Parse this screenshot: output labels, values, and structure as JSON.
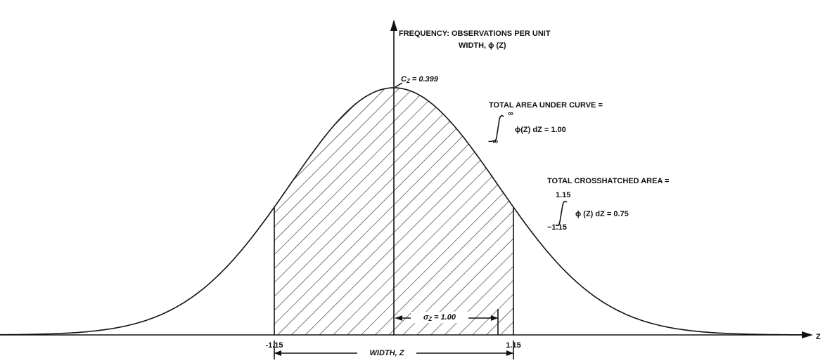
{
  "axes": {
    "y_label": [
      "FREQUENCY: OBSERVATIONS PER UNIT",
      "WIDTH, ϕ (Z)"
    ],
    "x_label": "Z"
  },
  "peak": {
    "symbol": "C",
    "subscript": "Z",
    "value": "= 0.399"
  },
  "total_area": {
    "title": "TOTAL AREA UNDER CURVE =",
    "upper": "∞",
    "lower": "−∞",
    "expression": "ϕ(Z) dZ = 1.00"
  },
  "hatched_area": {
    "title": "TOTAL CROSSHATCHED AREA =",
    "upper": "1.15",
    "lower": "−1.15",
    "expression": "ϕ (Z) dZ = 0.75"
  },
  "sigma": {
    "symbol": "σ",
    "subscript": "Z",
    "value": "= 1.00"
  },
  "bounds": {
    "left": "-1.15",
    "right": "1.15"
  },
  "width_label": "WIDTH, Z"
}
